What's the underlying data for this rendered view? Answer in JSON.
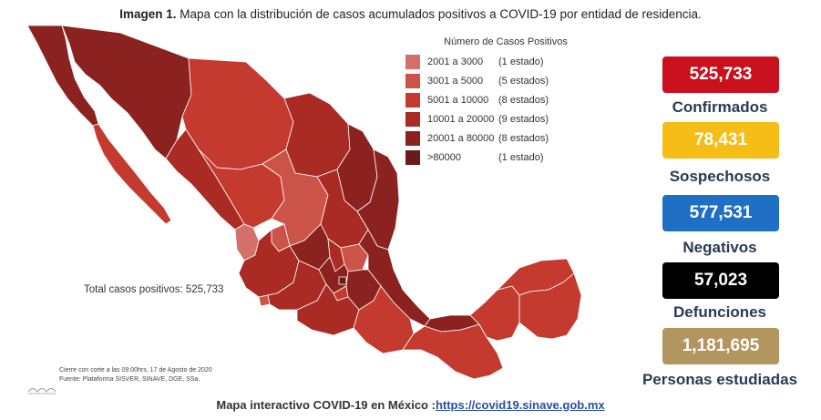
{
  "header": {
    "title_bold": "Imagen 1.",
    "title_rest": "Mapa con la distribución de casos acumulados positivos a COVID-19 por entidad de residencia."
  },
  "legend": {
    "title": "Número de Casos Positivos",
    "items": [
      {
        "range": "2001 a   3000",
        "count": "(1 estado)",
        "color": "#d4706a"
      },
      {
        "range": "3001 a   5000",
        "count": "(5 estados)",
        "color": "#cc5347"
      },
      {
        "range": "5001 a 10000",
        "count": "(8 estados)",
        "color": "#c43a2f"
      },
      {
        "range": "10001 a 20000",
        "count": "(9 estados)",
        "color": "#aa2a24"
      },
      {
        "range": "20001 a 80000",
        "count": "(8 estados)",
        "color": "#8c2220"
      },
      {
        "range": ">80000",
        "count": "(1 estado)",
        "color": "#6b1a1a"
      }
    ]
  },
  "map": {
    "total_label": "Total casos positivos: 525,733"
  },
  "footnote": {
    "line1": "Cierre con corte a las 09:00hrs, 17 de Agosto de 2020",
    "line2": "Fuente: Plataforma SISVER, SINAVE, DGE, SSa."
  },
  "stats": [
    {
      "value": "525,733",
      "label": "Confirmados",
      "color": "#c8101e"
    },
    {
      "value": "78,431",
      "label": "Sospechosos",
      "color": "#f6bd16"
    },
    {
      "value": "577,531",
      "label": "Negativos",
      "color": "#1f6fc5"
    },
    {
      "value": "57,023",
      "label": "Defunciones",
      "color": "#000000"
    },
    {
      "value": "1,181,695",
      "label": "Personas estudiadas",
      "color": "#b39560"
    }
  ],
  "footer": {
    "text": "Mapa interactivo COVID-19 en México :",
    "link": "https://covid19.sinave.gob.mx"
  }
}
